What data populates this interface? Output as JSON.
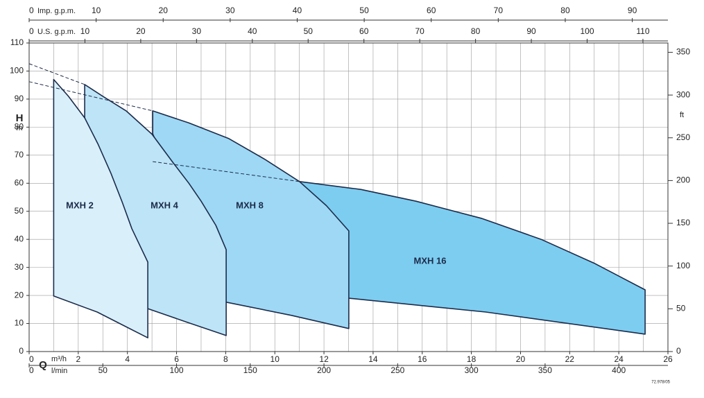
{
  "chart_data": {
    "type": "region",
    "xlabel": "Q",
    "x_unit": "m³/h",
    "ylabel": "H",
    "y_unit": "m",
    "y2_unit": "ft",
    "xlim": [
      0,
      26
    ],
    "xticks": [
      0,
      2,
      4,
      6,
      8,
      10,
      12,
      14,
      16,
      18,
      20,
      22,
      24,
      26
    ],
    "xgrid": [
      1,
      2,
      3,
      4,
      5,
      6,
      7,
      8,
      9,
      10,
      11,
      12,
      13,
      14,
      15,
      16,
      17,
      18,
      19,
      20,
      21,
      22,
      23,
      24,
      25
    ],
    "ylim": [
      0,
      110
    ],
    "yticks": [
      0,
      10,
      20,
      30,
      40,
      50,
      60,
      70,
      80,
      90,
      100,
      110
    ],
    "y2lim": [
      0,
      360.89
    ],
    "y2ticks": [
      0,
      50,
      100,
      150,
      200,
      250,
      300,
      350
    ],
    "grid": true,
    "secondary_x_axes": [
      {
        "label": "Imp. g.p.m.",
        "position": "top",
        "lim": [
          0,
          95.32
        ],
        "ticks": [
          0,
          10,
          20,
          30,
          40,
          50,
          60,
          70,
          80,
          90
        ]
      },
      {
        "label": "U.S. g.p.m.",
        "position": "top",
        "lim": [
          0,
          114.48
        ],
        "ticks": [
          0,
          10,
          20,
          30,
          40,
          50,
          60,
          70,
          80,
          90,
          100,
          110
        ]
      },
      {
        "label": "l/min",
        "position": "bottom",
        "lim": [
          0,
          433.33
        ],
        "ticks": [
          0,
          50,
          100,
          150,
          200,
          250,
          300,
          350,
          400
        ]
      }
    ],
    "series": [
      {
        "name": "MXH 2",
        "color": "#d9f0fb",
        "x": [
          1.0,
          1.6,
          2.26,
          2.8,
          3.33,
          3.8,
          4.18,
          4.55,
          4.83,
          4.83,
          3.8,
          2.77,
          1.0
        ],
        "values": [
          97,
          91,
          83.3,
          74,
          63.5,
          53,
          43.8,
          37,
          31.9,
          4.9,
          9.5,
          14.1,
          19.8
        ]
      },
      {
        "name": "MXH 4",
        "color": "#bde4f7",
        "x": [
          2.26,
          3.0,
          3.95,
          5.0,
          5.87,
          6.5,
          7.0,
          7.6,
          8.02,
          8.02,
          6.44,
          4.83,
          2.26
        ],
        "values": [
          95.2,
          91,
          85.8,
          77.5,
          67.2,
          60,
          53.6,
          45,
          36.3,
          5.7,
          10.4,
          15.3,
          83.3
        ]
      },
      {
        "name": "MXH 8",
        "color": "#9ed8f4",
        "x": [
          5.03,
          6.5,
          8.13,
          9.6,
          11.0,
          12.1,
          13.01,
          13.01,
          10.67,
          8.02,
          5.03
        ],
        "values": [
          85.8,
          81.5,
          75.9,
          68.5,
          60.6,
          52,
          43.0,
          8.2,
          12.9,
          17.6,
          77.6
        ]
      },
      {
        "name": "MXH 16",
        "color": "#7dcdf0",
        "x": [
          11.0,
          13.5,
          15.75,
          18.4,
          20.84,
          23.0,
          25.07,
          25.07,
          18.58,
          13.01
        ],
        "values": [
          60.6,
          57.8,
          53.6,
          47.5,
          40.0,
          31.5,
          22.0,
          6.2,
          14.1,
          19.0
        ]
      }
    ],
    "dashed_lines": [
      {
        "x": [
          0,
          2.26
        ],
        "values": [
          102.6,
          95.2
        ]
      },
      {
        "x": [
          0,
          5.03
        ],
        "values": [
          96.2,
          85.8
        ]
      },
      {
        "x": [
          5.03,
          11.0
        ],
        "values": [
          67.7,
          60.6
        ]
      }
    ],
    "footnote": "72.978/05"
  }
}
